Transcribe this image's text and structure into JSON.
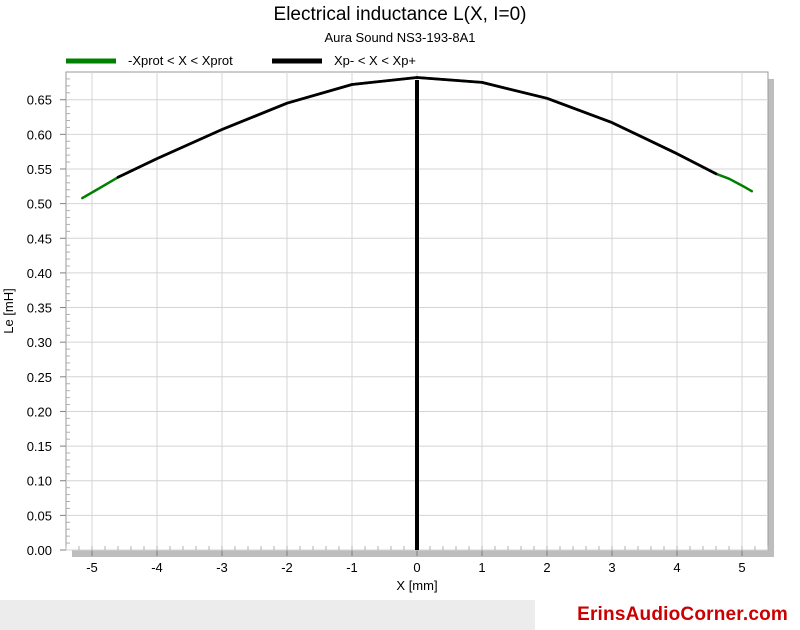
{
  "chart_data": {
    "type": "line",
    "title": "Electrical inductance L(X, I=0)",
    "subtitle": "Aura Sound NS3-193-8A1",
    "xlabel": "X [mm]",
    "ylabel": "Le [mH]",
    "xlim": [
      -5.4,
      5.4
    ],
    "ylim": [
      0,
      0.69
    ],
    "xticks": [
      -5,
      -4,
      -3,
      -2,
      -1,
      0,
      1,
      2,
      3,
      4,
      5
    ],
    "xtick_labels": [
      "-5",
      "-4",
      "-3",
      "-2",
      "-1",
      "0",
      "1",
      "2",
      "3",
      "4",
      "5"
    ],
    "yticks": [
      0,
      0.05,
      0.1,
      0.15,
      0.2,
      0.25,
      0.3,
      0.35,
      0.4,
      0.45,
      0.5,
      0.55,
      0.6,
      0.65
    ],
    "ytick_labels": [
      "0.00",
      "0.05",
      "0.10",
      "0.15",
      "0.20",
      "0.25",
      "0.30",
      "0.35",
      "0.40",
      "0.45",
      "0.50",
      "0.55",
      "0.60",
      "0.65"
    ],
    "grid": true,
    "legend_position": "top",
    "series": [
      {
        "name": "-Xprot < X < Xprot",
        "color": "#008000",
        "x": [
          -5.15,
          -5.0,
          -4.8,
          -4.6,
          -4.0,
          -3.0,
          -2.0,
          -1.0,
          0.0,
          1.0,
          2.0,
          3.0,
          4.0,
          4.6,
          4.8,
          5.0,
          5.15
        ],
        "y": [
          0.508,
          0.516,
          0.527,
          0.538,
          0.565,
          0.607,
          0.645,
          0.672,
          0.682,
          0.675,
          0.652,
          0.617,
          0.572,
          0.543,
          0.536,
          0.526,
          0.518
        ]
      },
      {
        "name": "Xp- < X < Xp+",
        "color": "#000000",
        "x": [
          -4.6,
          -4.0,
          -3.0,
          -2.0,
          -1.0,
          0.0,
          1.0,
          2.0,
          3.0,
          4.0,
          4.6
        ],
        "y": [
          0.538,
          0.565,
          0.607,
          0.645,
          0.672,
          0.682,
          0.675,
          0.652,
          0.617,
          0.572,
          0.543
        ]
      }
    ],
    "vline": {
      "x": 0,
      "color": "#000000"
    }
  },
  "footer": {
    "brand": "ErinsAudioCorner.com",
    "brand_color": "#cc0000"
  }
}
